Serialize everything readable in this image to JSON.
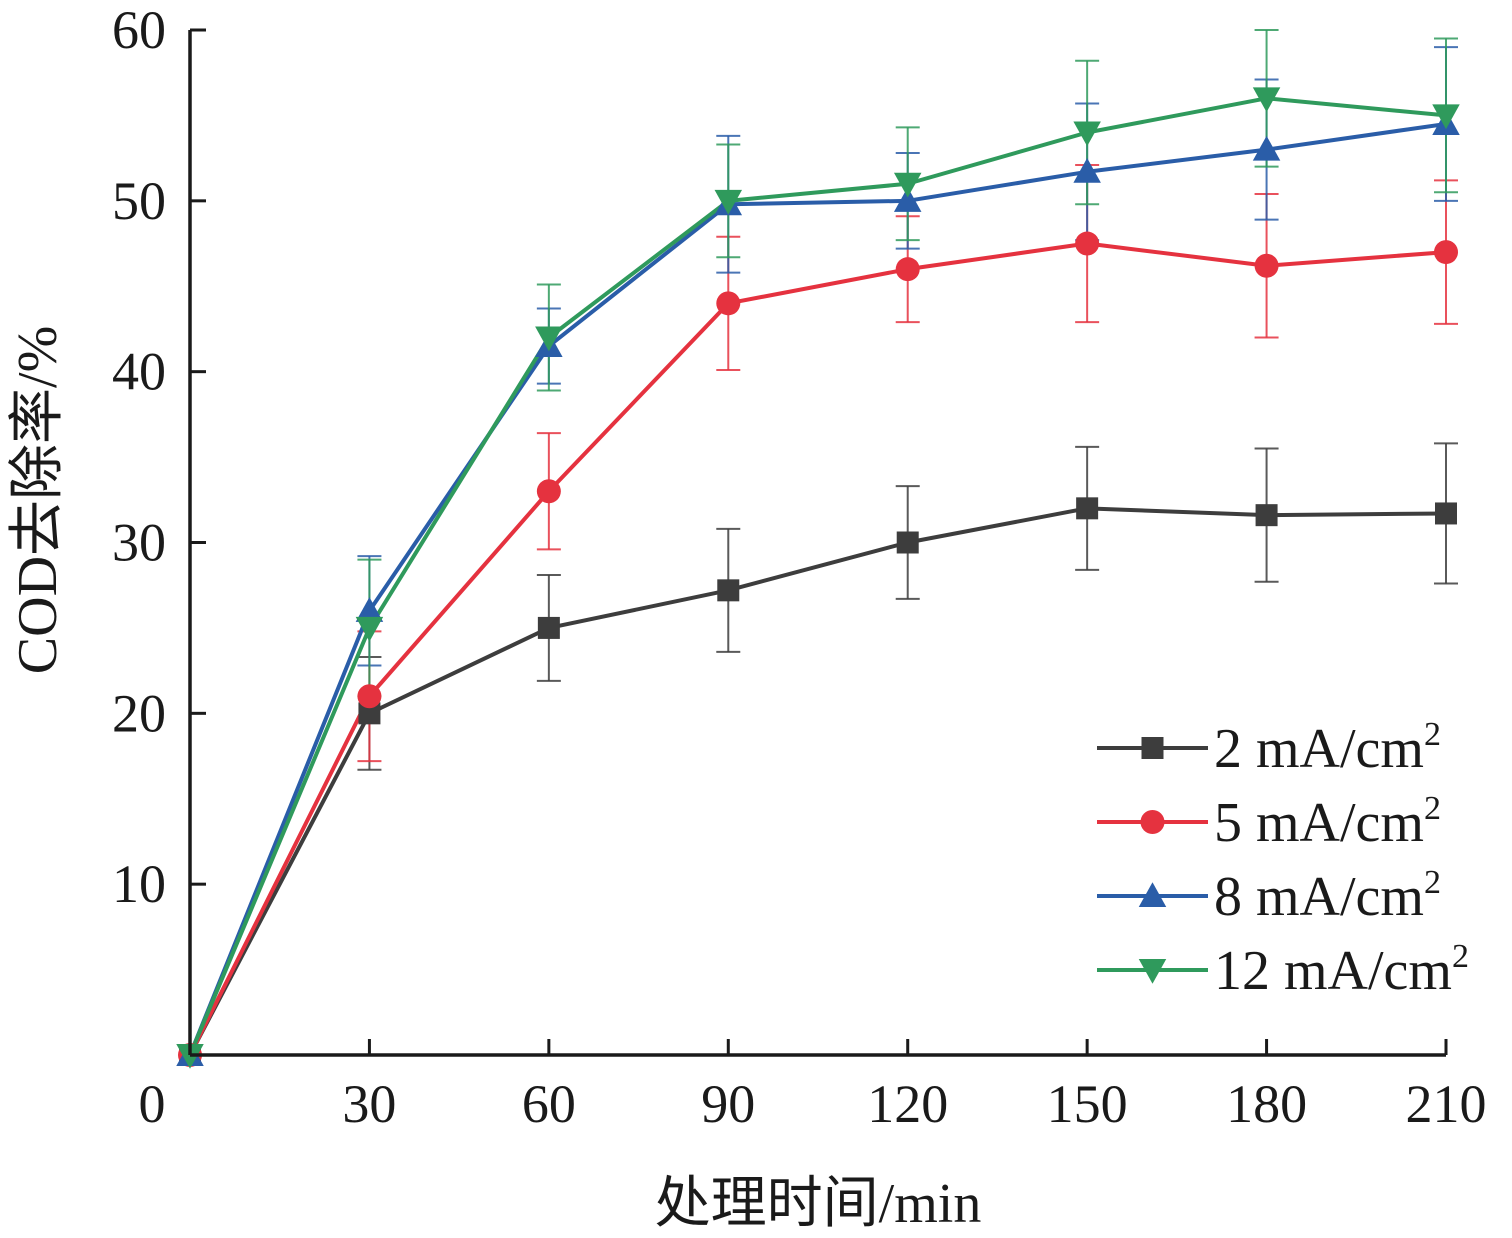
{
  "chart_data": {
    "type": "line",
    "title": "",
    "xlabel": "处理时间/min",
    "ylabel": "COD去除率/%",
    "x": [
      0,
      30,
      60,
      90,
      120,
      150,
      180,
      210
    ],
    "xlim": [
      0,
      210
    ],
    "ylim": [
      0,
      60
    ],
    "x_ticks": [
      "0",
      "30",
      "60",
      "90",
      "120",
      "150",
      "180",
      "210"
    ],
    "y_ticks": [
      "10",
      "20",
      "30",
      "40",
      "50",
      "60"
    ],
    "grid": false,
    "legend_position": "bottom-right",
    "series": [
      {
        "name": "2 mA/cm²",
        "name_base": "2 mA/cm",
        "name_sup": "2",
        "color": "#3d3d3d",
        "marker": "square",
        "values": [
          0,
          20,
          25,
          27.2,
          30,
          32,
          31.6,
          31.7
        ],
        "errors": [
          0,
          3.3,
          3.1,
          3.6,
          3.3,
          3.6,
          3.9,
          4.1
        ]
      },
      {
        "name": "5 mA/cm²",
        "name_base": "5 mA/cm",
        "name_sup": "2",
        "color": "#e5323f",
        "marker": "circle",
        "values": [
          0,
          21,
          33,
          44,
          46,
          47.5,
          46.2,
          47
        ],
        "errors": [
          0,
          3.8,
          3.4,
          3.9,
          3.1,
          4.6,
          4.2,
          4.2
        ]
      },
      {
        "name": "8 mA/cm²",
        "name_base": "8 mA/cm",
        "name_sup": "2",
        "color": "#2a5da8",
        "marker": "triangle-up",
        "values": [
          0,
          26,
          41.5,
          49.8,
          50,
          51.7,
          53,
          54.5
        ],
        "errors": [
          0,
          3.2,
          2.2,
          4,
          2.8,
          4,
          4.1,
          4.5
        ]
      },
      {
        "name": "12 mA/cm²",
        "name_base": "12 mA/cm",
        "name_sup": "2",
        "color": "#2f9a5c",
        "marker": "triangle-down",
        "values": [
          0,
          25,
          42,
          50,
          51,
          54,
          56,
          55
        ],
        "errors": [
          0,
          4,
          3.1,
          3.3,
          3.3,
          4.2,
          4,
          4.5
        ]
      }
    ]
  }
}
